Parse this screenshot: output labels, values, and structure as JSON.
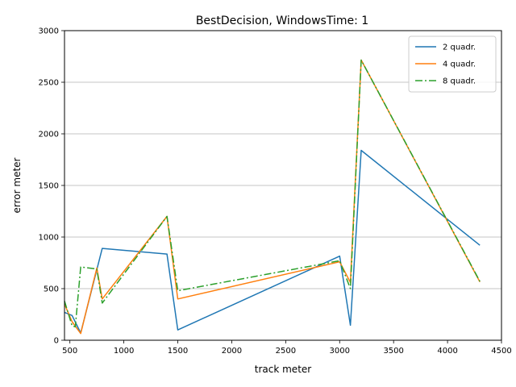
{
  "chart_data": {
    "type": "line",
    "title": "BestDecision, WindowsTime: 1",
    "xlabel": "track meter",
    "ylabel": "error meter",
    "xlim": [
      450,
      4500
    ],
    "ylim": [
      0,
      3000
    ],
    "x_ticks": [
      500,
      1000,
      1500,
      2000,
      2500,
      3000,
      3500,
      4000,
      4500
    ],
    "y_ticks": [
      0,
      500,
      1000,
      1500,
      2000,
      2500,
      3000
    ],
    "grid": "horizontal",
    "legend_position": "top-right",
    "series": [
      {
        "name": "2 quadr.",
        "color": "#1f77b4",
        "style": "solid",
        "points": [
          [
            450,
            270
          ],
          [
            520,
            240
          ],
          [
            600,
            70
          ],
          [
            800,
            890
          ],
          [
            1400,
            835
          ],
          [
            1500,
            100
          ],
          [
            3000,
            815
          ],
          [
            3100,
            145
          ],
          [
            3200,
            1840
          ],
          [
            4300,
            920
          ]
        ]
      },
      {
        "name": "4 quadr.",
        "color": "#ff7f0e",
        "style": "solid",
        "points": [
          [
            450,
            350
          ],
          [
            520,
            180
          ],
          [
            600,
            65
          ],
          [
            750,
            700
          ],
          [
            800,
            400
          ],
          [
            1400,
            1200
          ],
          [
            1500,
            400
          ],
          [
            3000,
            760
          ],
          [
            3100,
            560
          ],
          [
            3200,
            2715
          ],
          [
            4300,
            565
          ]
        ]
      },
      {
        "name": "8 quadr.",
        "color": "#2ca02c",
        "style": "dashdot",
        "points": [
          [
            450,
            380
          ],
          [
            520,
            140
          ],
          [
            550,
            130
          ],
          [
            600,
            710
          ],
          [
            750,
            690
          ],
          [
            800,
            360
          ],
          [
            1400,
            1200
          ],
          [
            1500,
            480
          ],
          [
            3000,
            770
          ],
          [
            3100,
            500
          ],
          [
            3200,
            2715
          ],
          [
            4300,
            570
          ]
        ]
      }
    ]
  }
}
